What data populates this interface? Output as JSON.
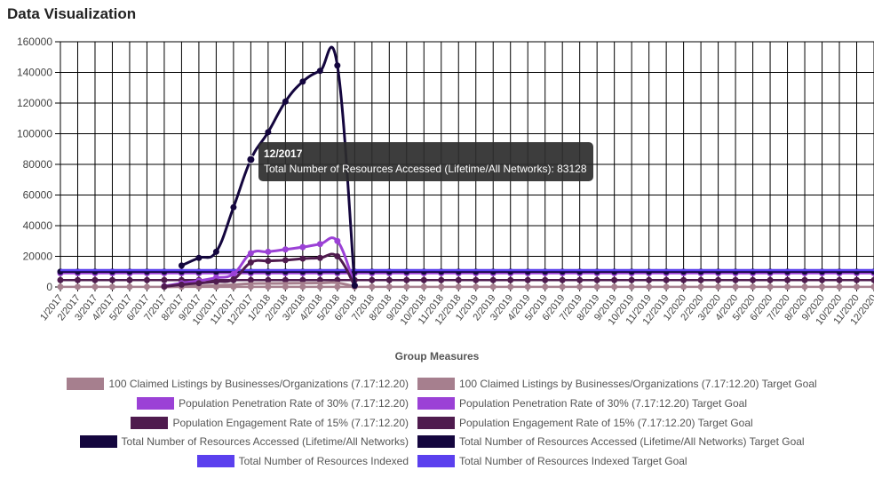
{
  "header": {
    "title": "Data Visualization"
  },
  "tooltip": {
    "title": "12/2017",
    "body": "Total Number of Resources Accessed (Lifetime/All Networks): 83128"
  },
  "chart_data": {
    "type": "line",
    "xlabel": "Group Measures",
    "ylabel": "",
    "ylim": [
      0,
      160000
    ],
    "yticks": [
      0,
      20000,
      40000,
      60000,
      80000,
      100000,
      120000,
      140000,
      160000
    ],
    "grid": true,
    "legend_position": "bottom",
    "categories": [
      "1/2017",
      "2/2017",
      "3/2017",
      "4/2017",
      "5/2017",
      "6/2017",
      "7/2017",
      "8/2017",
      "9/2017",
      "10/2017",
      "11/2017",
      "12/2017",
      "1/2018",
      "2/2018",
      "3/2018",
      "4/2018",
      "5/2018",
      "6/2018",
      "7/2018",
      "8/2018",
      "9/2018",
      "10/2018",
      "11/2018",
      "12/2018",
      "1/2019",
      "2/2019",
      "3/2019",
      "4/2019",
      "5/2019",
      "6/2019",
      "7/2019",
      "8/2019",
      "9/2019",
      "10/2019",
      "11/2019",
      "12/2019",
      "1/2020",
      "2/2020",
      "3/2020",
      "4/2020",
      "5/2020",
      "6/2020",
      "7/2020",
      "8/2020",
      "9/2020",
      "10/2020",
      "11/2020",
      "12/2020"
    ],
    "series": [
      {
        "name": "100 Claimed Listings by Businesses/Organizations (7.17:12.20)",
        "color": "#a67f8e",
        "show_points": false,
        "values": [
          null,
          null,
          null,
          null,
          null,
          null,
          0,
          300,
          600,
          1000,
          1500,
          2200,
          2300,
          2400,
          2500,
          2600,
          2700,
          200,
          null,
          null,
          null,
          null,
          null,
          null,
          null,
          null,
          null,
          null,
          null,
          null,
          null,
          null,
          null,
          null,
          null,
          null,
          null,
          null,
          null,
          null,
          null,
          null,
          null,
          null,
          null,
          null,
          null,
          null
        ]
      },
      {
        "name": "100 Claimed Listings by Businesses/Organizations (7.17:12.20) Target Goal",
        "color": "#a67f8e",
        "show_points": true,
        "values": [
          100,
          100,
          100,
          100,
          100,
          100,
          100,
          100,
          100,
          100,
          100,
          100,
          100,
          100,
          100,
          100,
          100,
          100,
          100,
          100,
          100,
          100,
          100,
          100,
          100,
          100,
          100,
          100,
          100,
          100,
          100,
          100,
          100,
          100,
          100,
          100,
          100,
          100,
          100,
          100,
          100,
          100,
          100,
          100,
          100,
          100,
          100,
          100
        ]
      },
      {
        "name": "Population Penetration Rate of 30% (7.17:12.20)",
        "color": "#9b41d6",
        "show_points": true,
        "values": [
          null,
          null,
          null,
          null,
          null,
          null,
          500,
          2500,
          4000,
          6000,
          8500,
          22000,
          23000,
          24500,
          26000,
          28000,
          30000,
          1000,
          null,
          null,
          null,
          null,
          null,
          null,
          null,
          null,
          null,
          null,
          null,
          null,
          null,
          null,
          null,
          null,
          null,
          null,
          null,
          null,
          null,
          null,
          null,
          null,
          null,
          null,
          null,
          null,
          null,
          null
        ]
      },
      {
        "name": "Population Penetration Rate of 30% (7.17:12.20) Target Goal",
        "color": "#9b41d6",
        "show_points": true,
        "values": [
          9000,
          9000,
          9000,
          9000,
          9000,
          9000,
          9000,
          9000,
          9000,
          9000,
          9000,
          9000,
          9000,
          9000,
          9000,
          9000,
          9000,
          9000,
          9000,
          9000,
          9000,
          9000,
          9000,
          9000,
          9000,
          9000,
          9000,
          9000,
          9000,
          9000,
          9000,
          9000,
          9000,
          9000,
          9000,
          9000,
          9000,
          9000,
          9000,
          9000,
          9000,
          9000,
          9000,
          9000,
          9000,
          9000,
          9000,
          9000
        ]
      },
      {
        "name": "Population Engagement Rate of 15% (7.17:12.20)",
        "color": "#4f1b4e",
        "show_points": true,
        "values": [
          null,
          null,
          null,
          null,
          null,
          null,
          300,
          1500,
          2500,
          3500,
          5000,
          16000,
          17000,
          17500,
          18500,
          19000,
          20000,
          800,
          null,
          null,
          null,
          null,
          null,
          null,
          null,
          null,
          null,
          null,
          null,
          null,
          null,
          null,
          null,
          null,
          null,
          null,
          null,
          null,
          null,
          null,
          null,
          null,
          null,
          null,
          null,
          null,
          null,
          null
        ]
      },
      {
        "name": "Population Engagement Rate of 15% (7.17:12.20) Target Goal",
        "color": "#4f1b4e",
        "show_points": true,
        "values": [
          4500,
          4500,
          4500,
          4500,
          4500,
          4500,
          4500,
          4500,
          4500,
          4500,
          4500,
          4500,
          4500,
          4500,
          4500,
          4500,
          4500,
          4500,
          4500,
          4500,
          4500,
          4500,
          4500,
          4500,
          4500,
          4500,
          4500,
          4500,
          4500,
          4500,
          4500,
          4500,
          4500,
          4500,
          4500,
          4500,
          4500,
          4500,
          4500,
          4500,
          4500,
          4500,
          4500,
          4500,
          4500,
          4500,
          4500,
          4500
        ]
      },
      {
        "name": "Total Number of Resources Accessed (Lifetime/All Networks)",
        "color": "#14063e",
        "show_points": true,
        "values": [
          null,
          null,
          null,
          null,
          null,
          null,
          null,
          14000,
          19000,
          23000,
          52000,
          83128,
          101000,
          121000,
          134000,
          141000,
          144500,
          1000,
          null,
          null,
          null,
          null,
          null,
          null,
          null,
          null,
          null,
          null,
          null,
          null,
          null,
          null,
          null,
          null,
          null,
          null,
          null,
          null,
          null,
          null,
          null,
          null,
          null,
          null,
          null,
          null,
          null,
          null
        ]
      },
      {
        "name": "Total Number of Resources Accessed (Lifetime/All Networks) Target Goal",
        "color": "#14063e",
        "show_points": true,
        "values": [
          10000,
          10000,
          10000,
          10000,
          10000,
          10000,
          10000,
          10000,
          10000,
          10000,
          10000,
          10000,
          10000,
          10000,
          10000,
          10000,
          10000,
          10000,
          10000,
          10000,
          10000,
          10000,
          10000,
          10000,
          10000,
          10000,
          10000,
          10000,
          10000,
          10000,
          10000,
          10000,
          10000,
          10000,
          10000,
          10000,
          10000,
          10000,
          10000,
          10000,
          10000,
          10000,
          10000,
          10000,
          10000,
          10000,
          10000,
          10000
        ]
      },
      {
        "name": "Total Number of Resources Indexed",
        "color": "#5b40ee",
        "show_points": false,
        "values": [
          null,
          null,
          null,
          null,
          null,
          null,
          null,
          null,
          null,
          null,
          null,
          null,
          null,
          null,
          null,
          null,
          null,
          null,
          null,
          null,
          null,
          null,
          null,
          null,
          null,
          null,
          null,
          null,
          null,
          null,
          null,
          null,
          null,
          null,
          null,
          null,
          null,
          null,
          null,
          null,
          null,
          null,
          null,
          null,
          null,
          null,
          null,
          null
        ]
      },
      {
        "name": "Total Number of Resources Indexed Target Goal",
        "color": "#5b40ee",
        "show_points": false,
        "values": [
          11000,
          11000,
          11000,
          11000,
          11000,
          11000,
          11000,
          11000,
          11000,
          11000,
          11000,
          11000,
          11000,
          11000,
          11000,
          11000,
          11000,
          11000,
          11000,
          11000,
          11000,
          11000,
          11000,
          11000,
          11000,
          11000,
          11000,
          11000,
          11000,
          11000,
          11000,
          11000,
          11000,
          11000,
          11000,
          11000,
          11000,
          11000,
          11000,
          11000,
          11000,
          11000,
          11000,
          11000,
          11000,
          11000,
          11000,
          11000
        ]
      }
    ],
    "legend_rows": [
      [
        0,
        1
      ],
      [
        2,
        3
      ],
      [
        4,
        5
      ],
      [
        6,
        7
      ],
      [
        8,
        9
      ]
    ]
  }
}
